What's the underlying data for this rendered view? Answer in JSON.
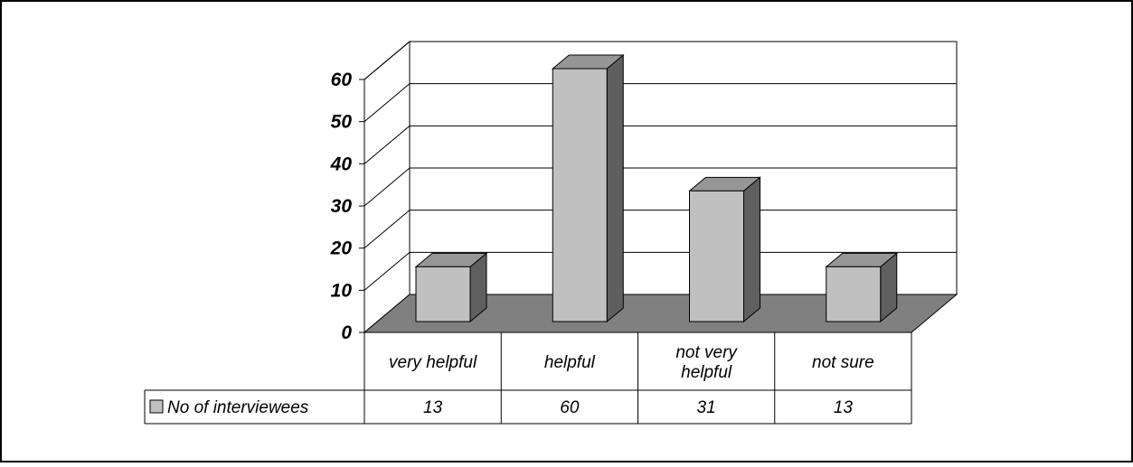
{
  "chart_data": {
    "type": "bar",
    "three_d": true,
    "categories": [
      "very helpful",
      "helpful",
      "not very helpful",
      "not sure"
    ],
    "category_label_lines": [
      [
        "very helpful"
      ],
      [
        "helpful"
      ],
      [
        "not very",
        "helpful"
      ],
      [
        "not sure"
      ]
    ],
    "series": [
      {
        "name": "No of interviewees",
        "values": [
          13,
          60,
          31,
          13
        ]
      }
    ],
    "value_labels": [
      "13",
      "60",
      "31",
      "13"
    ],
    "ylim": [
      0,
      60
    ],
    "yticks": [
      0,
      10,
      20,
      30,
      40,
      50,
      60
    ],
    "ytick_labels": [
      "0",
      "10",
      "20",
      "30",
      "40",
      "50",
      "60"
    ],
    "grid": true,
    "legend": "data-table",
    "colors": {
      "bar_front": "#c0c0c0",
      "bar_top": "#969696",
      "bar_side": "#5f5f5f",
      "floor": "#808080",
      "border": "#000000"
    }
  }
}
